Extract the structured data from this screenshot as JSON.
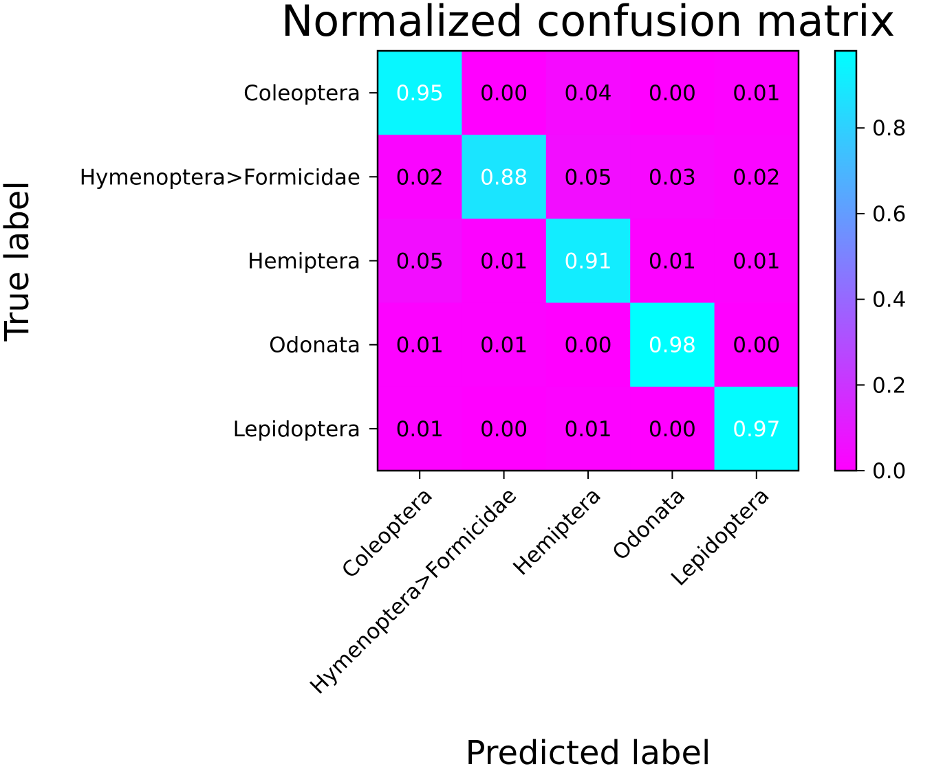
{
  "chart_data": {
    "type": "heatmap",
    "title": "Normalized confusion matrix",
    "xlabel": "Predicted label",
    "ylabel": "True label",
    "x_categories": [
      "Coleoptera",
      "Hymenoptera>Formicidae",
      "Hemiptera",
      "Odonata",
      "Lepidoptera"
    ],
    "y_categories": [
      "Coleoptera",
      "Hymenoptera>Formicidae",
      "Hemiptera",
      "Odonata",
      "Lepidoptera"
    ],
    "values": [
      [
        0.95,
        0.0,
        0.04,
        0.0,
        0.01
      ],
      [
        0.02,
        0.88,
        0.05,
        0.03,
        0.02
      ],
      [
        0.05,
        0.01,
        0.91,
        0.01,
        0.01
      ],
      [
        0.01,
        0.01,
        0.0,
        0.98,
        0.0
      ],
      [
        0.01,
        0.0,
        0.01,
        0.0,
        0.97
      ]
    ],
    "cell_labels": [
      [
        "0.95",
        "0.00",
        "0.04",
        "0.00",
        "0.01"
      ],
      [
        "0.02",
        "0.88",
        "0.05",
        "0.03",
        "0.02"
      ],
      [
        "0.05",
        "0.01",
        "0.91",
        "0.01",
        "0.01"
      ],
      [
        "0.01",
        "0.01",
        "0.00",
        "0.98",
        "0.00"
      ],
      [
        "0.01",
        "0.00",
        "0.01",
        "0.00",
        "0.97"
      ]
    ],
    "colormap": "cool_reversed",
    "colormap_low": "#ff00ff",
    "colormap_high": "#00ffff",
    "vmin": 0.0,
    "vmax": 0.98,
    "text_color_threshold": 0.49,
    "text_color_dark": "#000000",
    "text_color_light": "#ffffff",
    "colorbar": {
      "ticks": [
        0.0,
        0.2,
        0.4,
        0.6,
        0.8
      ],
      "tick_labels": [
        "0.0",
        "0.2",
        "0.4",
        "0.6",
        "0.8"
      ]
    },
    "grid": false
  }
}
